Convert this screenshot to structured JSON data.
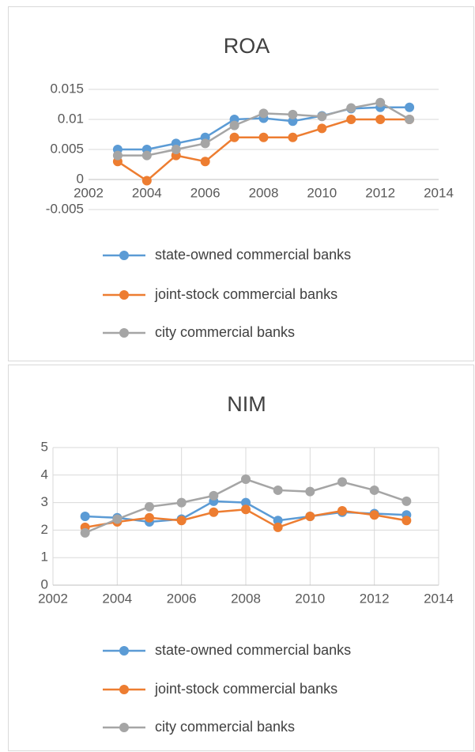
{
  "chart_data": [
    {
      "type": "line",
      "title": "ROA",
      "x": [
        2003,
        2004,
        2005,
        2006,
        2007,
        2008,
        2009,
        2010,
        2011,
        2012,
        2013
      ],
      "xlim": [
        2002,
        2014
      ],
      "xticks": [
        2002,
        2004,
        2006,
        2008,
        2010,
        2012,
        2014
      ],
      "ylim": [
        -0.005,
        0.015
      ],
      "yticks": [
        -0.005,
        0,
        0.005,
        0.01,
        0.015
      ],
      "ygrid": true,
      "xgrid": false,
      "legend": "bottom",
      "series": [
        {
          "name": "state-owned commercial banks",
          "color": "#5b9bd5",
          "values": [
            0.005,
            0.005,
            0.006,
            0.007,
            0.01,
            0.0102,
            0.0097,
            0.0106,
            0.0118,
            0.012,
            0.012
          ]
        },
        {
          "name": "joint-stock commercial banks",
          "color": "#ed7d31",
          "values": [
            0.003,
            -0.0002,
            0.004,
            0.003,
            0.007,
            0.007,
            0.007,
            0.0085,
            0.01,
            0.01,
            0.01
          ]
        },
        {
          "name": "city commercial banks",
          "color": "#a5a5a5",
          "values": [
            0.004,
            0.004,
            0.005,
            0.006,
            0.009,
            0.011,
            0.0108,
            0.0105,
            0.0119,
            0.0128,
            0.01
          ]
        }
      ]
    },
    {
      "type": "line",
      "title": "NIM",
      "x": [
        2003,
        2004,
        2005,
        2006,
        2007,
        2008,
        2009,
        2010,
        2011,
        2012,
        2013
      ],
      "xlim": [
        2002,
        2014
      ],
      "xticks": [
        2002,
        2004,
        2006,
        2008,
        2010,
        2012,
        2014
      ],
      "ylim": [
        0,
        5
      ],
      "yticks": [
        0,
        1,
        2,
        3,
        4,
        5
      ],
      "ygrid": true,
      "xgrid": true,
      "legend": "bottom",
      "series": [
        {
          "name": "state-owned commercial banks",
          "color": "#5b9bd5",
          "values": [
            2.5,
            2.45,
            2.3,
            2.4,
            3.05,
            3.0,
            2.35,
            2.5,
            2.65,
            2.6,
            2.55
          ]
        },
        {
          "name": "joint-stock commercial banks",
          "color": "#ed7d31",
          "values": [
            2.1,
            2.3,
            2.45,
            2.35,
            2.65,
            2.75,
            2.1,
            2.5,
            2.7,
            2.55,
            2.35
          ]
        },
        {
          "name": "city commercial banks",
          "color": "#a5a5a5",
          "values": [
            1.9,
            2.4,
            2.85,
            3.0,
            3.25,
            3.85,
            3.45,
            3.4,
            3.75,
            3.45,
            3.05
          ]
        }
      ]
    }
  ]
}
